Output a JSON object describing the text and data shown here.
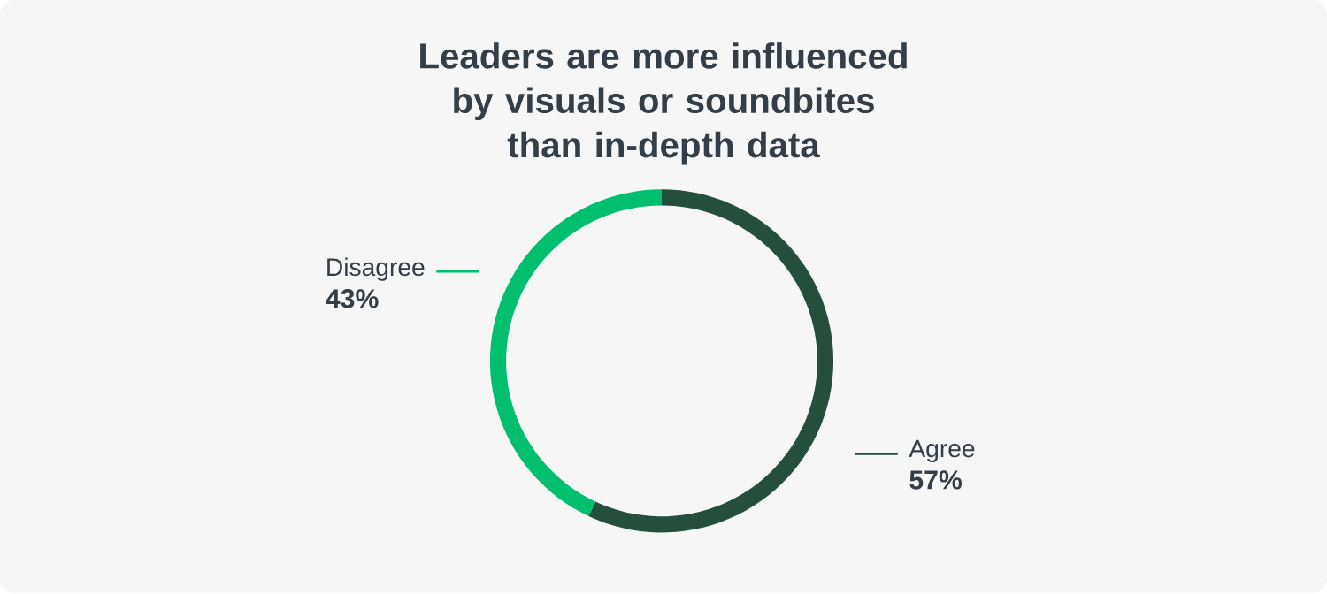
{
  "chart_data": {
    "type": "donut",
    "title": "Leaders are more influenced by visuals or soundbites than in-depth data",
    "categories": [
      "Agree",
      "Disagree"
    ],
    "values": [
      57,
      43
    ],
    "colors": [
      "#234f3c",
      "#00bf6f"
    ],
    "value_labels": [
      "57%",
      "43%"
    ]
  }
}
